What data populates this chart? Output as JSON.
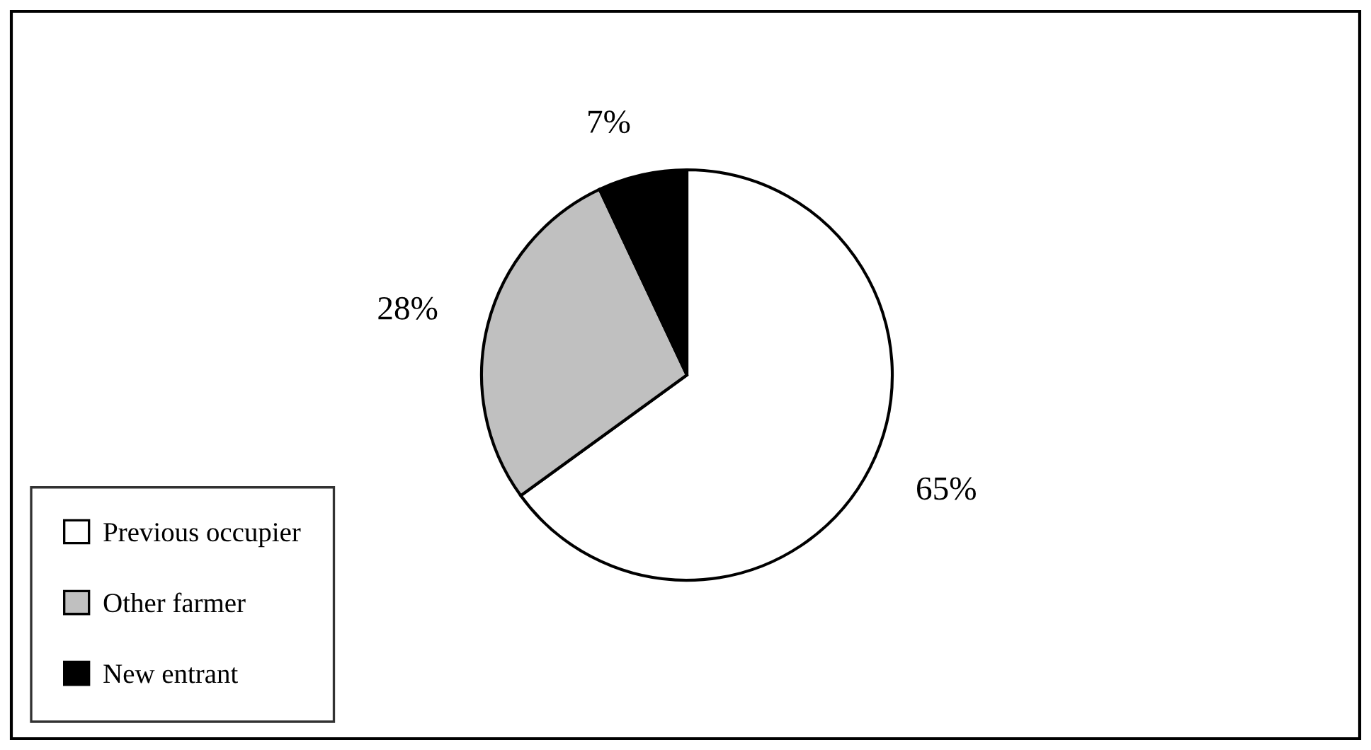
{
  "chart_data": {
    "type": "pie",
    "categories": [
      "Previous occupier",
      "Other farmer",
      "New entrant"
    ],
    "values": [
      65,
      28,
      7
    ],
    "colors": [
      "#ffffff",
      "#c0c0c0",
      "#000000"
    ],
    "value_labels": [
      "65%",
      "28%",
      "7%"
    ],
    "legend": "bottom left"
  }
}
